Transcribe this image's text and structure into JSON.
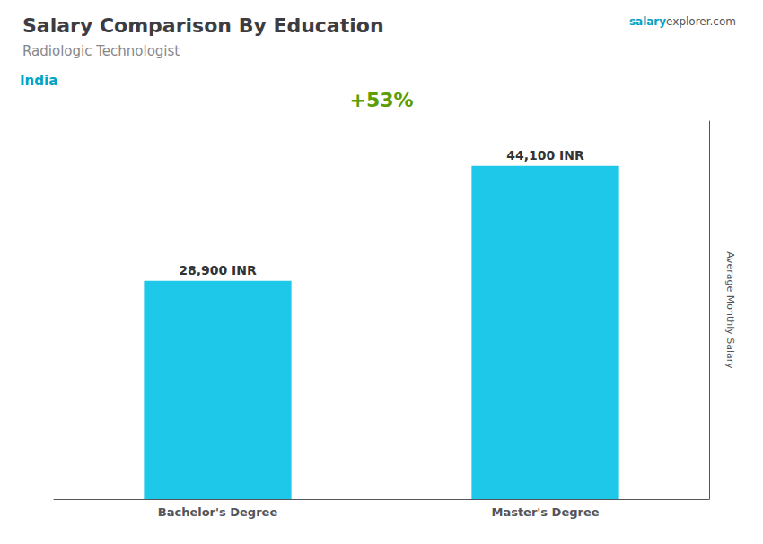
{
  "chart_data": {
    "type": "bar",
    "title": "Salary Comparison By Education",
    "subtitle": "Radiologic Technologist",
    "annotations": [
      "India",
      "salary",
      "explorer.com",
      "+53%"
    ],
    "y_label": "Average Monthly Salary",
    "categories": [
      "Bachelor's Degree",
      "Master's Degree"
    ],
    "values": [
      28900,
      44100
    ],
    "value_labels": [
      "28,900 INR",
      "44,100 INR"
    ],
    "data_labels": true,
    "color": "#1ec8e8",
    "ylim": [
      0,
      50000
    ],
    "tick_labels": "x",
    "grid": false
  }
}
